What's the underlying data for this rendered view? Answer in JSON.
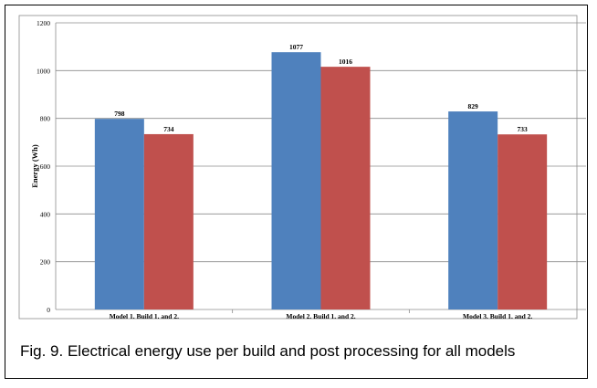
{
  "chart_data": {
    "type": "bar",
    "categories": [
      "Model 1. Build 1. and 2.",
      "Model 2. Build 1. and 2.",
      "Model 3. Build 1. and 2."
    ],
    "series": [
      {
        "values": [
          798,
          1077,
          829
        ],
        "color": "#4f81bd"
      },
      {
        "values": [
          734,
          1016,
          733
        ],
        "color": "#c0504d"
      }
    ],
    "ylabel": "Energy (Wh)",
    "ylim": [
      0,
      1200
    ],
    "yticks": [
      0,
      200,
      400,
      600,
      800,
      1000,
      1200
    ],
    "grid": true,
    "data_labels": true
  },
  "caption": "Fig. 9. Electrical energy use per build and post processing for all models"
}
